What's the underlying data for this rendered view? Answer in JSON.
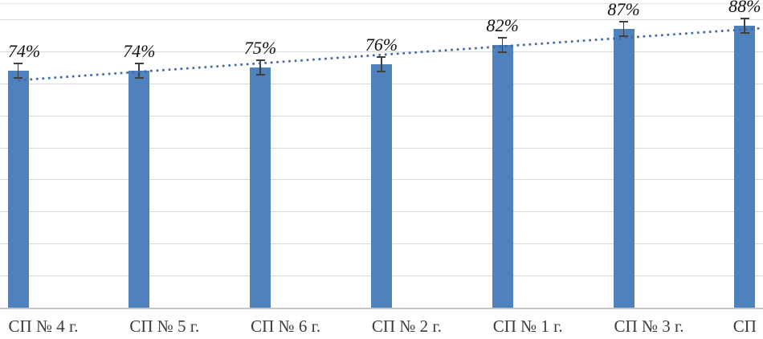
{
  "chart_data": {
    "type": "bar",
    "title": "",
    "xlabel": "",
    "ylabel": "",
    "categories": [
      "СП № 4 г.",
      "СП № 5 г.",
      "СП № 6 г.",
      "СП № 2 г.",
      "СП № 1 г.",
      "СП № 3 г.",
      "СП"
    ],
    "values": [
      74,
      74,
      75,
      76,
      82,
      87,
      88
    ],
    "value_labels": [
      "74%",
      "74%",
      "75%",
      "76%",
      "82%",
      "87%",
      "88%"
    ],
    "error_bar_pct": 2.6,
    "ylim": [
      0,
      95
    ],
    "gridline_interval": 10,
    "grid": "on",
    "legend": "none",
    "y_axis_labels_visible": false,
    "trendline": {
      "type": "linear",
      "style": "dotted",
      "start_pct": 71.0,
      "end_pct": 87.3,
      "color": "#3f69a9"
    },
    "colors": {
      "bar": "#4f81bd",
      "gridline": "#d9d9d9",
      "axis": "#c6c6c6",
      "error_bar": "#3f3f3f",
      "value_label": "#111111",
      "category_label": "#3a3a3a",
      "background": "#ffffff"
    }
  }
}
